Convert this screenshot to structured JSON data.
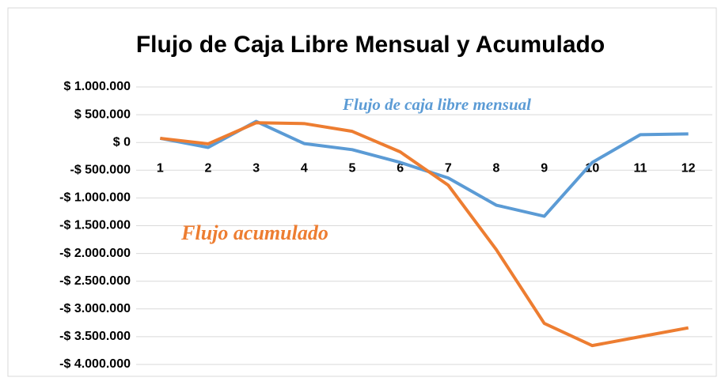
{
  "chart_data": {
    "type": "line",
    "title": "Flujo de Caja Libre Mensual y Acumulado",
    "categories": [
      "1",
      "2",
      "3",
      "4",
      "5",
      "6",
      "7",
      "8",
      "9",
      "10",
      "11",
      "12"
    ],
    "series": [
      {
        "name": "Flujo de caja libre mensual",
        "color": "#5b9bd5",
        "values": [
          75000,
          -90000,
          380000,
          -20000,
          -130000,
          -360000,
          -640000,
          -1130000,
          -1330000,
          -360000,
          140000,
          155000
        ]
      },
      {
        "name": "Flujo acumulado",
        "color": "#ed7d31",
        "values": [
          75000,
          -25000,
          355000,
          340000,
          200000,
          -170000,
          -770000,
          -1930000,
          -3260000,
          -3660000,
          -3500000,
          -3340000
        ]
      }
    ],
    "ylim": [
      -4000000,
      1000000
    ],
    "yticks": [
      {
        "value": 1000000,
        "label": "$ 1.000.000"
      },
      {
        "value": 500000,
        "label": "$ 500.000"
      },
      {
        "value": 0,
        "label": "$ 0"
      },
      {
        "value": -500000,
        "label": "-$ 500.000"
      },
      {
        "value": -1000000,
        "label": "-$ 1.000.000"
      },
      {
        "value": -1500000,
        "label": "-$ 1.500.000"
      },
      {
        "value": -2000000,
        "label": "-$ 2.000.000"
      },
      {
        "value": -2500000,
        "label": "-$ 2.500.000"
      },
      {
        "value": -3000000,
        "label": "-$ 3.000.000"
      },
      {
        "value": -3500000,
        "label": "-$ 3.500.000"
      },
      {
        "value": -4000000,
        "label": "-$ 4.000.000"
      }
    ],
    "grid": true
  }
}
